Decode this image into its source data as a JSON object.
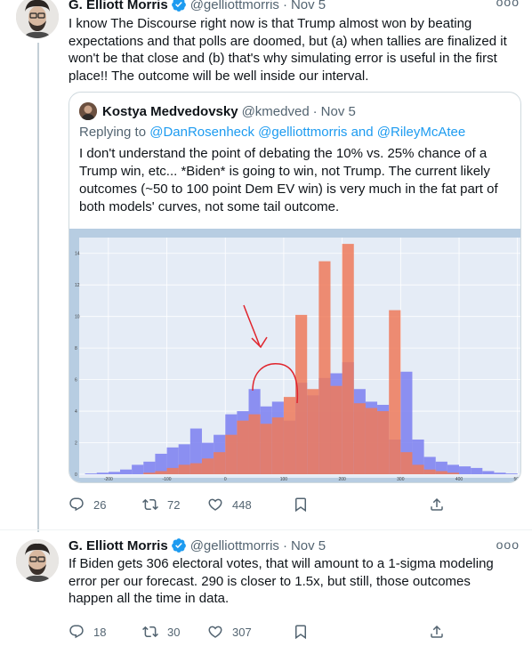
{
  "tweet1": {
    "author_name": "G. Elliott Morris",
    "author_handle": "@gelliottmorris",
    "separator": "·",
    "time": "Nov 5",
    "text": "I know The Discourse right now is that Trump almost won by beating expectations and that polls are doomed, but (a) when tallies are finalized it won't be that close and (b) that's why simulating error is useful in the first place!! The outcome will be well inside our interval.",
    "quote": {
      "author_name": "Kostya Medvedovsky",
      "author_handle": "@kmedved",
      "separator": "·",
      "time": "Nov 5",
      "replying_prefix": "Replying to",
      "replying_to": "@DanRosenheck @gelliottmorris and @RileyMcAtee",
      "text": "I don't understand the point of debating the 10% vs. 25% chance of a Trump win, etc... *Biden* is going to win, not Trump. The current likely outcomes (~50 to 100 point Dem EV win) is very much in the fat part of both models' curves, not some tail outcome."
    },
    "actions": {
      "reply_count": "26",
      "retweet_count": "72",
      "like_count": "448"
    }
  },
  "tweet2": {
    "author_name": "G. Elliott Morris",
    "author_handle": "@gelliottmorris",
    "separator": "·",
    "time": "Nov 5",
    "text": "If Biden gets 306 electoral votes, that will amount to a 1-sigma modeling error per our forecast. 290 is closer to 1.5x, but still, those outcomes happen all the time in data.",
    "actions": {
      "reply_count": "18",
      "retweet_count": "30",
      "like_count": "307"
    }
  },
  "more_label": "ooo",
  "colors": {
    "accent": "#1d9bf0",
    "histogram_blue": "#7b7ff0",
    "histogram_red": "#ee7a5a",
    "annotation": "#e0242c"
  },
  "chart_data": {
    "type": "bar",
    "x_ticks": [
      "-200",
      "-100",
      "0",
      "100",
      "200",
      "300",
      "400",
      "500"
    ],
    "y_ticks": [
      "0",
      "2",
      "4",
      "6",
      "8",
      "10",
      "12",
      "14"
    ],
    "xlim": [
      -250,
      505
    ],
    "ylim": [
      0,
      15
    ],
    "bin_width": 20,
    "series": [
      {
        "bin_starts": [
          -240,
          -220,
          -200,
          -180,
          -160,
          -140,
          -120,
          -100,
          -80,
          -60,
          -40,
          -20,
          0,
          20,
          40,
          60,
          80,
          100,
          120,
          140,
          160,
          180,
          200,
          220,
          240,
          260,
          280,
          300,
          320,
          340,
          360,
          380,
          400,
          420,
          440,
          460,
          480
        ],
        "values": [
          0.05,
          0.1,
          0.15,
          0.3,
          0.6,
          0.8,
          1.3,
          1.7,
          1.9,
          2.9,
          2.0,
          2.5,
          3.8,
          4.0,
          5.4,
          4.3,
          4.6,
          3.4,
          5.8,
          5.0,
          6.1,
          6.4,
          7.1,
          5.4,
          4.6,
          4.4,
          2.2,
          6.5,
          2.2,
          1.1,
          0.8,
          0.6,
          0.5,
          0.4,
          0.2,
          0.1,
          0.05
        ]
      },
      {
        "bin_starts": [
          -140,
          -120,
          -100,
          -80,
          -60,
          -40,
          -20,
          0,
          20,
          40,
          60,
          80,
          100,
          120,
          140,
          160,
          180,
          200,
          220,
          240,
          260,
          280,
          300,
          320,
          340,
          360,
          380
        ],
        "values": [
          0.1,
          0.2,
          0.4,
          0.6,
          0.7,
          1.0,
          1.4,
          2.5,
          3.4,
          3.8,
          3.2,
          3.6,
          4.9,
          10.1,
          5.4,
          13.5,
          5.6,
          14.6,
          4.5,
          4.2,
          4.0,
          10.4,
          1.4,
          0.6,
          0.3,
          0.2,
          0.1
        ]
      }
    ]
  }
}
